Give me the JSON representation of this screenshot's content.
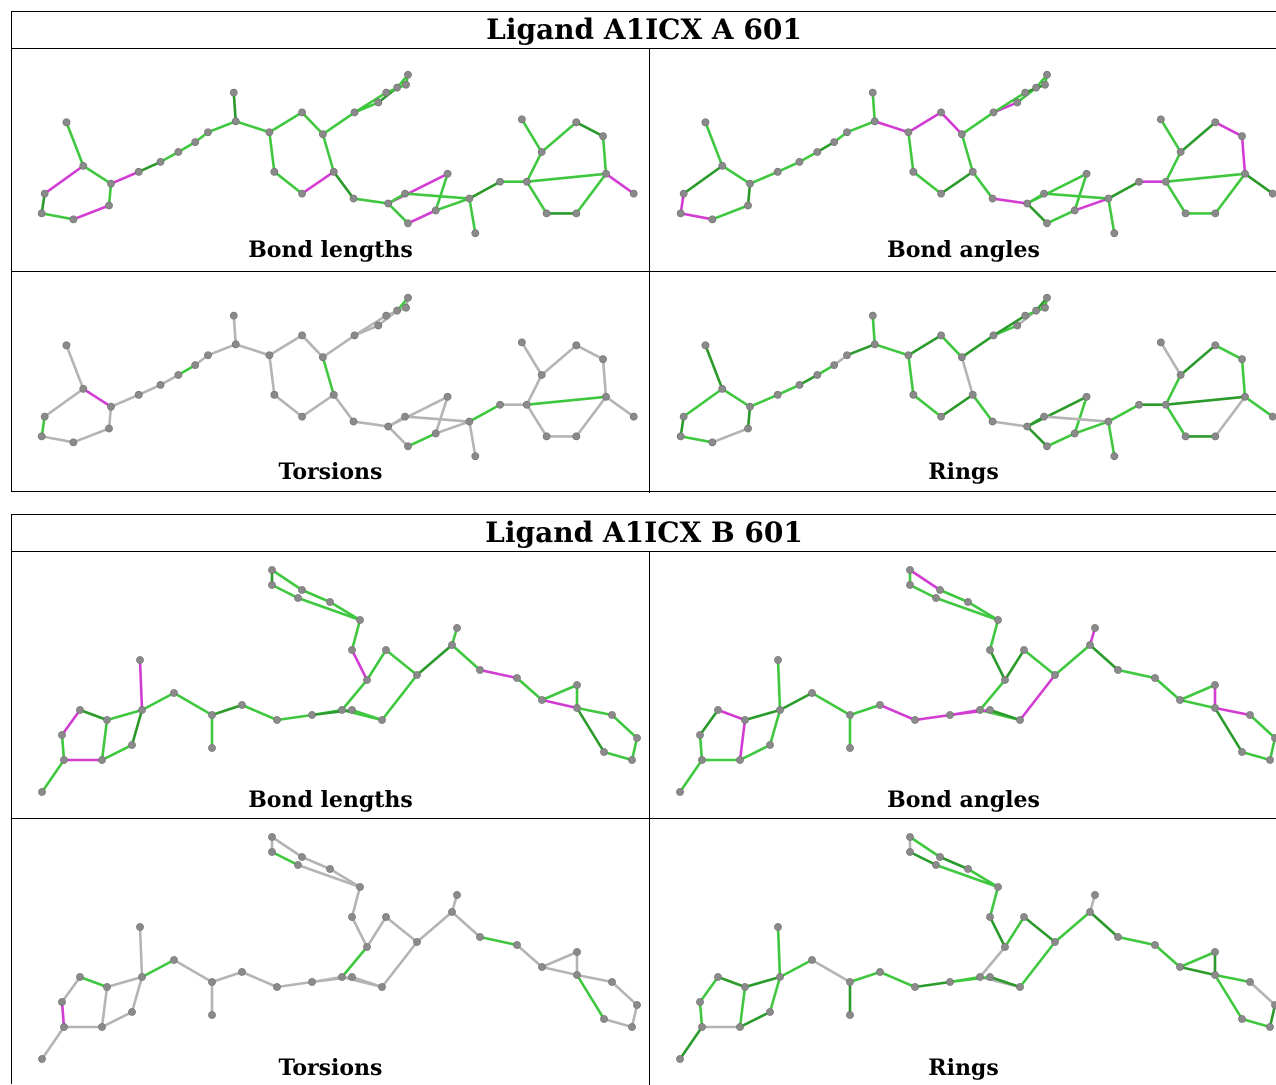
{
  "panels": [
    {
      "title": "Ligand A1ICX A 601",
      "cells": [
        {
          "caption": "Bond lengths",
          "bonds": "mixed"
        },
        {
          "caption": "Bond angles",
          "bonds": "mixed"
        },
        {
          "caption": "Torsions",
          "bonds": "mostly-gray"
        },
        {
          "caption": "Rings",
          "bonds": "ring-green"
        }
      ]
    },
    {
      "title": "Ligand A1ICX B 601",
      "cells": [
        {
          "caption": "Bond lengths",
          "bonds": "mixed"
        },
        {
          "caption": "Bond angles",
          "bonds": "mixed"
        },
        {
          "caption": "Torsions",
          "bonds": "mostly-gray"
        },
        {
          "caption": "Rings",
          "bonds": "ring-green"
        }
      ]
    }
  ],
  "colors": {
    "good": "#3fc83f",
    "good_dark": "#2a9a2a",
    "outlier": "#d23cd2",
    "neutral": "#b4b4b4",
    "atom": "#8a8a8a"
  }
}
